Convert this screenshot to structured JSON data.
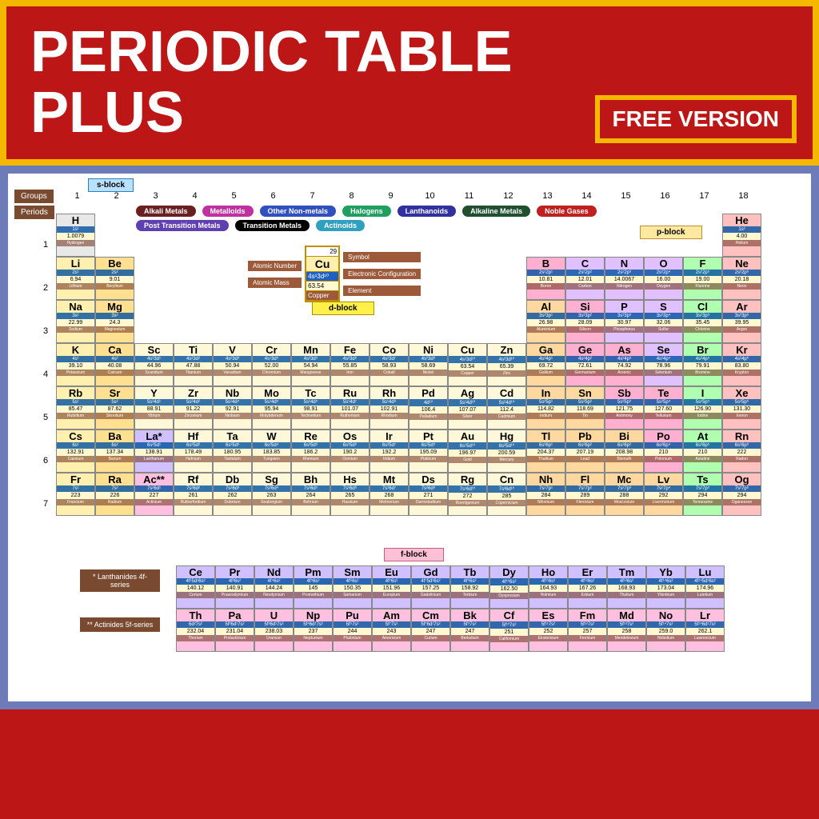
{
  "header": {
    "title_line1": "PERIODIC TABLE",
    "title_line2": "PLUS",
    "badge": "FREE VERSION",
    "bg_color": "#bc1616",
    "border_color": "#f5b800"
  },
  "blocks": {
    "s": "s-block",
    "p": "p-block",
    "d": "d-block",
    "f": "f-block"
  },
  "axis": {
    "groups_label": "Groups",
    "periods_label": "Periods",
    "groups": [
      "1",
      "2",
      "3",
      "4",
      "5",
      "6",
      "7",
      "8",
      "9",
      "10",
      "11",
      "12",
      "13",
      "14",
      "15",
      "16",
      "17",
      "18"
    ],
    "periods": [
      "1",
      "2",
      "3",
      "4",
      "5",
      "6",
      "7"
    ]
  },
  "legend": [
    {
      "label": "Alkali Metals",
      "color": "#6a2020"
    },
    {
      "label": "Metalloids",
      "color": "#c030a0"
    },
    {
      "label": "Other Non-metals",
      "color": "#3050c0"
    },
    {
      "label": "Halogens",
      "color": "#20a060"
    },
    {
      "label": "Lanthanoids",
      "color": "#3030a0"
    },
    {
      "label": "Alkaline Metals",
      "color": "#205030"
    },
    {
      "label": "Noble Gases",
      "color": "#c02020"
    },
    {
      "label": "Post Transition Metals",
      "color": "#6040b0"
    },
    {
      "label": "Transition Metals",
      "color": "#000000"
    },
    {
      "label": "Actinoids",
      "color": "#30a0c0"
    }
  ],
  "key": {
    "left": [
      "Atomic Number",
      "Atomic Mass"
    ],
    "right": [
      "Symbol",
      "Electronic Configuration",
      "Element"
    ],
    "cell": {
      "num": "29",
      "sym": "Cu",
      "cfg": "4s¹3d¹⁰",
      "mass": "63.54",
      "name": "Copper"
    }
  },
  "f_series": {
    "lanth_label": "* Lanthanides 4f-series",
    "act_label": "** Actinides 5f-series"
  },
  "colors": {
    "alkali": "#fff0b0",
    "alkaline": "#ffe090",
    "transition": "#fff8d8",
    "post": "#ffd8a0",
    "metalloid": "#ffb0d0",
    "nonmetal": "#e0c0ff",
    "halogen": "#b0ffb0",
    "noble": "#ffc0c0",
    "lanth": "#d0c0ff",
    "act": "#ffc0e0",
    "hydrogen": "#e8e8e8"
  },
  "elements": {
    "p1": [
      {
        "s": "H",
        "m": "1.0079",
        "c": "1s¹",
        "n": "Hydrogen",
        "cat": "hydrogen",
        "g": 1
      },
      {
        "s": "He",
        "m": "4.00",
        "c": "1s²",
        "n": "Helium",
        "cat": "noble",
        "g": 18
      }
    ],
    "p2": [
      {
        "s": "Li",
        "m": "6.94",
        "c": "2s¹",
        "n": "Lithium",
        "cat": "alkali",
        "g": 1
      },
      {
        "s": "Be",
        "m": "9.01",
        "c": "2s²",
        "n": "Beryllium",
        "cat": "alkaline",
        "g": 2
      },
      {
        "s": "B",
        "m": "10.81",
        "c": "2s²2p¹",
        "n": "Boron",
        "cat": "metalloid",
        "g": 13
      },
      {
        "s": "C",
        "m": "12.01",
        "c": "2s²2p²",
        "n": "Carbon",
        "cat": "nonmetal",
        "g": 14
      },
      {
        "s": "N",
        "m": "14.0067",
        "c": "2s²2p³",
        "n": "Nitrogen",
        "cat": "nonmetal",
        "g": 15
      },
      {
        "s": "O",
        "m": "16.00",
        "c": "2s²2p⁴",
        "n": "Oxygen",
        "cat": "nonmetal",
        "g": 16
      },
      {
        "s": "F",
        "m": "19.00",
        "c": "2s²2p⁵",
        "n": "Fluorine",
        "cat": "halogen",
        "g": 17
      },
      {
        "s": "Ne",
        "m": "20.18",
        "c": "2s²2p⁶",
        "n": "Neon",
        "cat": "noble",
        "g": 18
      }
    ],
    "p3": [
      {
        "s": "Na",
        "m": "22.99",
        "c": "3s¹",
        "n": "Sodium",
        "cat": "alkali",
        "g": 1
      },
      {
        "s": "Mg",
        "m": "24.3",
        "c": "3s²",
        "n": "Magnesium",
        "cat": "alkaline",
        "g": 2
      },
      {
        "s": "Al",
        "m": "26.98",
        "c": "3s²3p¹",
        "n": "Aluminium",
        "cat": "post",
        "g": 13
      },
      {
        "s": "Si",
        "m": "28.09",
        "c": "3s²3p²",
        "n": "Silicon",
        "cat": "metalloid",
        "g": 14
      },
      {
        "s": "P",
        "m": "30.97",
        "c": "3s²3p³",
        "n": "Phosphorus",
        "cat": "nonmetal",
        "g": 15
      },
      {
        "s": "S",
        "m": "32.06",
        "c": "3s²3p⁴",
        "n": "Sulfur",
        "cat": "nonmetal",
        "g": 16
      },
      {
        "s": "Cl",
        "m": "35.45",
        "c": "3s²3p⁵",
        "n": "Chlorine",
        "cat": "halogen",
        "g": 17
      },
      {
        "s": "Ar",
        "m": "39.95",
        "c": "3s²3p⁶",
        "n": "Argon",
        "cat": "noble",
        "g": 18
      }
    ],
    "p4": [
      {
        "s": "K",
        "m": "39.10",
        "c": "4s¹",
        "n": "Potassium",
        "cat": "alkali",
        "g": 1
      },
      {
        "s": "Ca",
        "m": "40.08",
        "c": "4s²",
        "n": "Calcium",
        "cat": "alkaline",
        "g": 2
      },
      {
        "s": "Sc",
        "m": "44.96",
        "c": "4s²3d¹",
        "n": "Scandium",
        "cat": "transition",
        "g": 3
      },
      {
        "s": "Ti",
        "m": "47.88",
        "c": "4s²3d²",
        "n": "Titanium",
        "cat": "transition",
        "g": 4
      },
      {
        "s": "V",
        "m": "50.94",
        "c": "4s²3d³",
        "n": "Vanadium",
        "cat": "transition",
        "g": 5
      },
      {
        "s": "Cr",
        "m": "52.00",
        "c": "4s¹3d⁵",
        "n": "Chromium",
        "cat": "transition",
        "g": 6
      },
      {
        "s": "Mn",
        "m": "54.94",
        "c": "4s²3d⁵",
        "n": "Manganese",
        "cat": "transition",
        "g": 7
      },
      {
        "s": "Fe",
        "m": "55.85",
        "c": "4s²3d⁶",
        "n": "Iron",
        "cat": "transition",
        "g": 8
      },
      {
        "s": "Co",
        "m": "58.93",
        "c": "4s²3d⁷",
        "n": "Cobalt",
        "cat": "transition",
        "g": 9
      },
      {
        "s": "Ni",
        "m": "58.69",
        "c": "4s²3d⁸",
        "n": "Nickel",
        "cat": "transition",
        "g": 10
      },
      {
        "s": "Cu",
        "m": "63.54",
        "c": "4s¹3d¹⁰",
        "n": "Copper",
        "cat": "transition",
        "g": 11
      },
      {
        "s": "Zn",
        "m": "65.39",
        "c": "4s²3d¹⁰",
        "n": "Zinc",
        "cat": "transition",
        "g": 12
      },
      {
        "s": "Ga",
        "m": "69.72",
        "c": "4s²4p¹",
        "n": "Gallium",
        "cat": "post",
        "g": 13
      },
      {
        "s": "Ge",
        "m": "72.61",
        "c": "4s²4p²",
        "n": "Germanium",
        "cat": "metalloid",
        "g": 14
      },
      {
        "s": "As",
        "m": "74.92",
        "c": "4s²4p³",
        "n": "Arsenic",
        "cat": "metalloid",
        "g": 15
      },
      {
        "s": "Se",
        "m": "78.96",
        "c": "4s²4p⁴",
        "n": "Selenium",
        "cat": "nonmetal",
        "g": 16
      },
      {
        "s": "Br",
        "m": "79.91",
        "c": "4s²4p⁵",
        "n": "Bromine",
        "cat": "halogen",
        "g": 17
      },
      {
        "s": "Kr",
        "m": "83.80",
        "c": "4s²4p⁶",
        "n": "Krypton",
        "cat": "noble",
        "g": 18
      }
    ],
    "p5": [
      {
        "s": "Rb",
        "m": "85.47",
        "c": "5s¹",
        "n": "Rubidium",
        "cat": "alkali",
        "g": 1
      },
      {
        "s": "Sr",
        "m": "87.62",
        "c": "5s²",
        "n": "Strontium",
        "cat": "alkaline",
        "g": 2
      },
      {
        "s": "Y",
        "m": "88.91",
        "c": "5s²4d¹",
        "n": "Yttrium",
        "cat": "transition",
        "g": 3
      },
      {
        "s": "Zr",
        "m": "91.22",
        "c": "5s²4d²",
        "n": "Zirconium",
        "cat": "transition",
        "g": 4
      },
      {
        "s": "Nb",
        "m": "92.91",
        "c": "5s¹4d⁴",
        "n": "Niobium",
        "cat": "transition",
        "g": 5
      },
      {
        "s": "Mo",
        "m": "95.94",
        "c": "5s¹4d⁵",
        "n": "Molybdenum",
        "cat": "transition",
        "g": 6
      },
      {
        "s": "Tc",
        "m": "98.91",
        "c": "5s²4d⁵",
        "n": "Technetium",
        "cat": "transition",
        "g": 7
      },
      {
        "s": "Ru",
        "m": "101.07",
        "c": "5s¹4d⁷",
        "n": "Ruthenium",
        "cat": "transition",
        "g": 8
      },
      {
        "s": "Rh",
        "m": "102.91",
        "c": "5s¹4d⁸",
        "n": "Rhodium",
        "cat": "transition",
        "g": 9
      },
      {
        "s": "Pd",
        "m": "106.4",
        "c": "4d¹⁰",
        "n": "Palladium",
        "cat": "transition",
        "g": 10
      },
      {
        "s": "Ag",
        "m": "107.07",
        "c": "5s¹4d¹⁰",
        "n": "Silver",
        "cat": "transition",
        "g": 11
      },
      {
        "s": "Cd",
        "m": "112.4",
        "c": "5s²4d¹⁰",
        "n": "Cadmium",
        "cat": "transition",
        "g": 12
      },
      {
        "s": "In",
        "m": "114.82",
        "c": "5s²5p¹",
        "n": "Indium",
        "cat": "post",
        "g": 13
      },
      {
        "s": "Sn",
        "m": "118.69",
        "c": "5s²5p²",
        "n": "Tin",
        "cat": "post",
        "g": 14
      },
      {
        "s": "Sb",
        "m": "121.75",
        "c": "5s²5p³",
        "n": "Antimony",
        "cat": "metalloid",
        "g": 15
      },
      {
        "s": "Te",
        "m": "127.60",
        "c": "5s²5p⁴",
        "n": "Tellurium",
        "cat": "metalloid",
        "g": 16
      },
      {
        "s": "I",
        "m": "126.90",
        "c": "5s²5p⁵",
        "n": "Iodine",
        "cat": "halogen",
        "g": 17
      },
      {
        "s": "Xe",
        "m": "131.30",
        "c": "5s²5p⁶",
        "n": "Xenon",
        "cat": "noble",
        "g": 18
      }
    ],
    "p6": [
      {
        "s": "Cs",
        "m": "132.91",
        "c": "6s¹",
        "n": "Caesium",
        "cat": "alkali",
        "g": 1
      },
      {
        "s": "Ba",
        "m": "137.34",
        "c": "6s²",
        "n": "Barium",
        "cat": "alkaline",
        "g": 2
      },
      {
        "s": "La*",
        "m": "138.91",
        "c": "6s²5d¹",
        "n": "Lanthanum",
        "cat": "lanth",
        "g": 3
      },
      {
        "s": "Hf",
        "m": "178.49",
        "c": "6s²5d²",
        "n": "Hafnium",
        "cat": "transition",
        "g": 4
      },
      {
        "s": "Ta",
        "m": "180.95",
        "c": "6s²5d³",
        "n": "Tantalum",
        "cat": "transition",
        "g": 5
      },
      {
        "s": "W",
        "m": "183.85",
        "c": "6s²5d⁴",
        "n": "Tungsten",
        "cat": "transition",
        "g": 6
      },
      {
        "s": "Re",
        "m": "186.2",
        "c": "6s²5d⁵",
        "n": "Rhenium",
        "cat": "transition",
        "g": 7
      },
      {
        "s": "Os",
        "m": "190.2",
        "c": "6s²5d⁶",
        "n": "Osmium",
        "cat": "transition",
        "g": 8
      },
      {
        "s": "Ir",
        "m": "192.2",
        "c": "6s²5d⁷",
        "n": "Iridium",
        "cat": "transition",
        "g": 9
      },
      {
        "s": "Pt",
        "m": "195.09",
        "c": "6s¹5d⁹",
        "n": "Platinum",
        "cat": "transition",
        "g": 10
      },
      {
        "s": "Au",
        "m": "196.97",
        "c": "6s¹5d¹⁰",
        "n": "Gold",
        "cat": "transition",
        "g": 11
      },
      {
        "s": "Hg",
        "m": "200.59",
        "c": "6s²5d¹⁰",
        "n": "Mercury",
        "cat": "transition",
        "g": 12
      },
      {
        "s": "Tl",
        "m": "204.37",
        "c": "6s²6p¹",
        "n": "Thallium",
        "cat": "post",
        "g": 13
      },
      {
        "s": "Pb",
        "m": "207.19",
        "c": "6s²6p²",
        "n": "Lead",
        "cat": "post",
        "g": 14
      },
      {
        "s": "Bi",
        "m": "208.98",
        "c": "6s²6p³",
        "n": "Bismuth",
        "cat": "post",
        "g": 15
      },
      {
        "s": "Po",
        "m": "210",
        "c": "6s²6p⁴",
        "n": "Polonium",
        "cat": "metalloid",
        "g": 16
      },
      {
        "s": "At",
        "m": "210",
        "c": "6s²6p⁵",
        "n": "Astatine",
        "cat": "halogen",
        "g": 17
      },
      {
        "s": "Rn",
        "m": "222",
        "c": "6s²6p⁶",
        "n": "Radon",
        "cat": "noble",
        "g": 18
      }
    ],
    "p7": [
      {
        "s": "Fr",
        "m": "223",
        "c": "7s¹",
        "n": "Francium",
        "cat": "alkali",
        "g": 1
      },
      {
        "s": "Ra",
        "m": "226",
        "c": "7s²",
        "n": "Radium",
        "cat": "alkaline",
        "g": 2
      },
      {
        "s": "Ac**",
        "m": "227",
        "c": "7s²6d¹",
        "n": "Actinium",
        "cat": "act",
        "g": 3
      },
      {
        "s": "Rf",
        "m": "261",
        "c": "7s²6d²",
        "n": "Rutherfordium",
        "cat": "transition",
        "g": 4
      },
      {
        "s": "Db",
        "m": "262",
        "c": "7s²6d³",
        "n": "Dubnium",
        "cat": "transition",
        "g": 5
      },
      {
        "s": "Sg",
        "m": "263",
        "c": "7s²6d⁴",
        "n": "Seaborgium",
        "cat": "transition",
        "g": 6
      },
      {
        "s": "Bh",
        "m": "264",
        "c": "7s²6d⁵",
        "n": "Bohrium",
        "cat": "transition",
        "g": 7
      },
      {
        "s": "Hs",
        "m": "265",
        "c": "7s²6d⁶",
        "n": "Hassium",
        "cat": "transition",
        "g": 8
      },
      {
        "s": "Mt",
        "m": "268",
        "c": "7s²6d⁷",
        "n": "Meitnerium",
        "cat": "transition",
        "g": 9
      },
      {
        "s": "Ds",
        "m": "271",
        "c": "7s²6d⁸",
        "n": "Darmstadtium",
        "cat": "transition",
        "g": 10
      },
      {
        "s": "Rg",
        "m": "272",
        "c": "7s¹6d¹⁰",
        "n": "Roentgenium",
        "cat": "transition",
        "g": 11
      },
      {
        "s": "Cn",
        "m": "285",
        "c": "7s²6d¹⁰",
        "n": "Copernicium",
        "cat": "transition",
        "g": 12
      },
      {
        "s": "Nh",
        "m": "284",
        "c": "7s²7p¹",
        "n": "Nihonium",
        "cat": "post",
        "g": 13
      },
      {
        "s": "Fl",
        "m": "289",
        "c": "7s²7p²",
        "n": "Flerovium",
        "cat": "post",
        "g": 14
      },
      {
        "s": "Mc",
        "m": "288",
        "c": "7s²7p³",
        "n": "Moscovium",
        "cat": "post",
        "g": 15
      },
      {
        "s": "Lv",
        "m": "292",
        "c": "7s²7p⁴",
        "n": "Livermorium",
        "cat": "post",
        "g": 16
      },
      {
        "s": "Ts",
        "m": "294",
        "c": "7s²7p⁵",
        "n": "Tennessine",
        "cat": "halogen",
        "g": 17
      },
      {
        "s": "Og",
        "m": "294",
        "c": "7s²7p⁶",
        "n": "Oganesson",
        "cat": "noble",
        "g": 18
      }
    ],
    "lanth": [
      {
        "s": "Ce",
        "m": "140.12",
        "c": "4f¹5d¹6s²",
        "n": "Cerium"
      },
      {
        "s": "Pr",
        "m": "140.91",
        "c": "4f³6s²",
        "n": "Praseodymium"
      },
      {
        "s": "Nd",
        "m": "144.24",
        "c": "4f⁴6s²",
        "n": "Neodymium"
      },
      {
        "s": "Pm",
        "m": "145",
        "c": "4f⁵6s²",
        "n": "Promethium"
      },
      {
        "s": "Sm",
        "m": "150.35",
        "c": "4f⁶6s²",
        "n": "Samarium"
      },
      {
        "s": "Eu",
        "m": "151.96",
        "c": "4f⁷6s²",
        "n": "Europium"
      },
      {
        "s": "Gd",
        "m": "157.25",
        "c": "4f⁷5d¹6s²",
        "n": "Gadolinium"
      },
      {
        "s": "Tb",
        "m": "158.92",
        "c": "4f⁹6s²",
        "n": "Terbium"
      },
      {
        "s": "Dy",
        "m": "162.50",
        "c": "4f¹⁰6s²",
        "n": "Dysprosium"
      },
      {
        "s": "Ho",
        "m": "164.93",
        "c": "4f¹¹6s²",
        "n": "Holmium"
      },
      {
        "s": "Er",
        "m": "167.26",
        "c": "4f¹²6s²",
        "n": "Erbium"
      },
      {
        "s": "Tm",
        "m": "168.93",
        "c": "4f¹³6s²",
        "n": "Thulium"
      },
      {
        "s": "Yb",
        "m": "173.04",
        "c": "4f¹⁴6s²",
        "n": "Ytterbium"
      },
      {
        "s": "Lu",
        "m": "174.96",
        "c": "4f¹⁴5d¹6s²",
        "n": "Lutetium"
      }
    ],
    "act": [
      {
        "s": "Th",
        "m": "232.04",
        "c": "6d²7s²",
        "n": "Thorium"
      },
      {
        "s": "Pa",
        "m": "231.04",
        "c": "5f²6d¹7s²",
        "n": "Protactinium"
      },
      {
        "s": "U",
        "m": "238.03",
        "c": "5f³6d¹7s²",
        "n": "Uranium"
      },
      {
        "s": "Np",
        "m": "237",
        "c": "5f⁴6d¹7s²",
        "n": "Neptunium"
      },
      {
        "s": "Pu",
        "m": "244",
        "c": "5f⁶7s²",
        "n": "Plutonium"
      },
      {
        "s": "Am",
        "m": "243",
        "c": "5f⁷7s²",
        "n": "Americium"
      },
      {
        "s": "Cm",
        "m": "247",
        "c": "5f⁷6d¹7s²",
        "n": "Curium"
      },
      {
        "s": "Bk",
        "m": "247",
        "c": "5f⁹7s²",
        "n": "Berkelium"
      },
      {
        "s": "Cf",
        "m": "251",
        "c": "5f¹⁰7s²",
        "n": "Californium"
      },
      {
        "s": "Es",
        "m": "252",
        "c": "5f¹¹7s²",
        "n": "Einsteinium"
      },
      {
        "s": "Fm",
        "m": "257",
        "c": "5f¹²7s²",
        "n": "Fermium"
      },
      {
        "s": "Md",
        "m": "258",
        "c": "5f¹³7s²",
        "n": "Mendelevium"
      },
      {
        "s": "No",
        "m": "259.0",
        "c": "5f¹⁴7s²",
        "n": "Nobelium"
      },
      {
        "s": "Lr",
        "m": "262.1",
        "c": "5f¹⁴6d¹7s²",
        "n": "Lawrencium"
      }
    ]
  }
}
